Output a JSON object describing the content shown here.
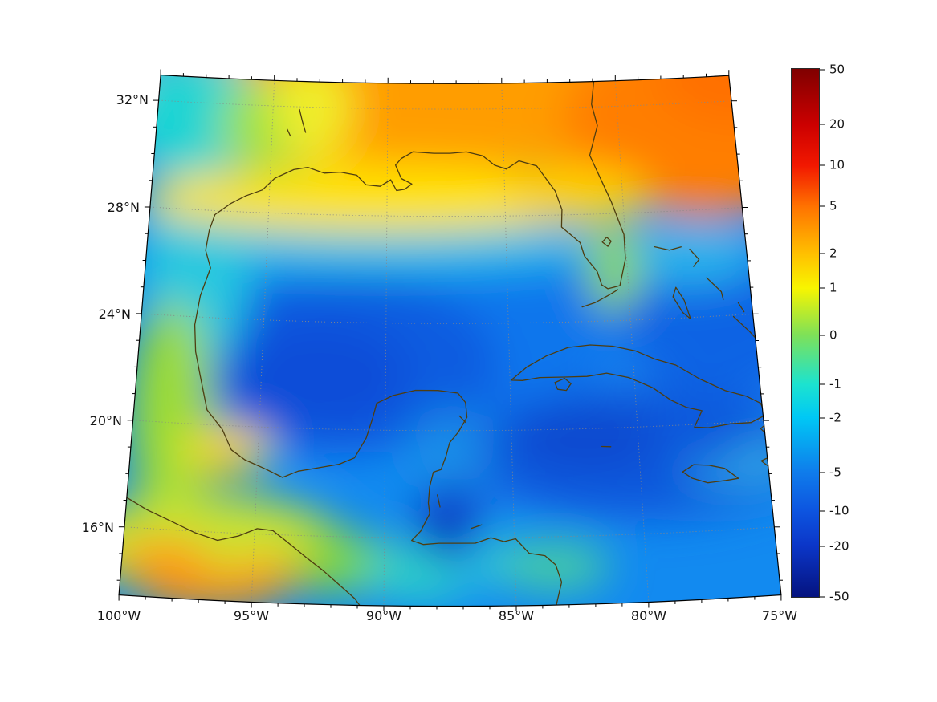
{
  "figure": {
    "background": "#ffffff",
    "map_frame_color": "#000000",
    "coastline_color": "#4e3d10",
    "graticule_style": "dotted"
  },
  "axes": {
    "lat_ticks": [
      "32°N",
      "28°N",
      "24°N",
      "20°N",
      "16°N"
    ],
    "lon_ticks": [
      "100°W",
      "95°W",
      "90°W",
      "85°W",
      "80°W",
      "75°W"
    ]
  },
  "colorbar": {
    "ticks": [
      "50",
      "20",
      "10",
      "5",
      "2",
      "1",
      "0",
      "-1",
      "-2",
      "-5",
      "-10",
      "-20",
      "-50"
    ],
    "top_color": "#800000",
    "bottom_color": "#05137f"
  },
  "chart_data": {
    "type": "heatmap",
    "title": "",
    "projection": "conic (curved graticule) over the Gulf of Mexico and western Caribbean",
    "geo_extent": {
      "lon_min": -100,
      "lon_max": -75,
      "lat_min": 13.5,
      "lat_max": 33
    },
    "colormap": "jet-like diverging",
    "color_scale": "symmetric-log",
    "colorbar_range": [
      -50,
      50
    ],
    "colorbar_ticks": [
      50,
      20,
      10,
      5,
      2,
      1,
      0,
      -1,
      -2,
      -5,
      -10,
      -20,
      -50
    ],
    "axis_tick_labels": {
      "lat": [
        "32°N",
        "28°N",
        "24°N",
        "20°N",
        "16°N"
      ],
      "lon": [
        "100°W",
        "95°W",
        "90°W",
        "85°W",
        "80°W",
        "75°W"
      ]
    },
    "grid_lons": [
      -99,
      -96,
      -93,
      -90,
      -87,
      -84,
      -81,
      -78,
      -76
    ],
    "grid_lats": [
      32,
      30,
      28,
      26,
      24,
      22,
      20,
      18,
      16,
      14
    ],
    "values_est": [
      [
        -1,
        0.5,
        2,
        4,
        4,
        5,
        5,
        6,
        8
      ],
      [
        -1,
        1,
        2,
        3,
        3,
        4,
        4,
        6,
        7
      ],
      [
        -1,
        0,
        1,
        1,
        1,
        2,
        3,
        3,
        2
      ],
      [
        -1,
        -2,
        -2,
        -2,
        -2,
        -1,
        1,
        -1,
        -2
      ],
      [
        0,
        -2,
        -5,
        -5,
        -5,
        -3,
        -2,
        -5,
        -5
      ],
      [
        1,
        -3,
        -7,
        -5,
        -4,
        -3,
        -4,
        -5,
        -5
      ],
      [
        2,
        1,
        -4,
        -4,
        -3,
        -5,
        -6,
        -7,
        -5
      ],
      [
        2,
        3,
        -2,
        -3,
        -5,
        -6,
        -7,
        -6,
        -4
      ],
      [
        4,
        5,
        0,
        -2,
        -10,
        -6,
        -5,
        -4,
        -3
      ],
      [
        5,
        2,
        1,
        -1,
        -3,
        -5,
        -5,
        -4,
        -4
      ]
    ],
    "values_note": "Field values estimated from pixel colors via the colorbar; rows follow grid_lats (north to south), columns follow grid_lons (west to east).",
    "grid": "dotted graticule at 4-degree latitude / 5-degree longitude intervals",
    "legend_position": "right colorbar"
  }
}
